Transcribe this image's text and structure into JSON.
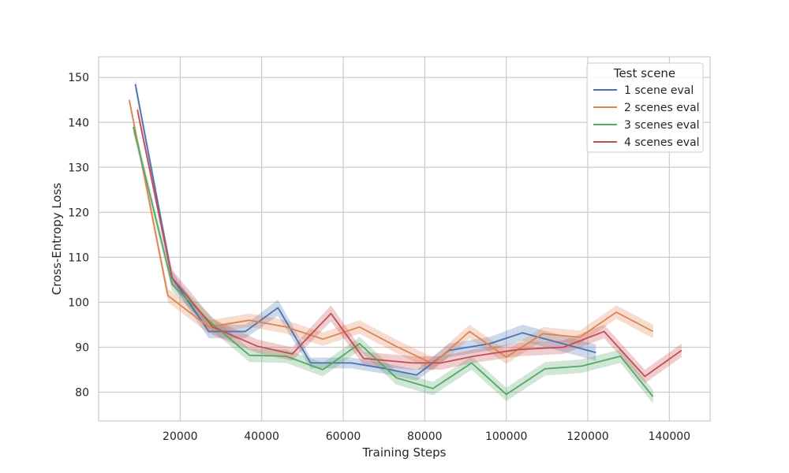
{
  "chart_data": {
    "type": "line",
    "xlabel": "Training Steps",
    "ylabel": "Cross-Entropy Loss",
    "xlim": [
      0,
      150000
    ],
    "ylim": [
      73.6,
      154.6
    ],
    "xticks": [
      20000,
      40000,
      60000,
      80000,
      100000,
      120000,
      140000
    ],
    "yticks": [
      80,
      90,
      100,
      110,
      120,
      130,
      140,
      150
    ],
    "grid": true,
    "legend": {
      "title": "Test scene",
      "position": "top-right"
    },
    "series": [
      {
        "name": "1 scene eval",
        "color": "#4C72B0",
        "x": [
          9000,
          18000,
          27000,
          36000,
          44000,
          52000,
          62000,
          70000,
          78000,
          86000,
          96000,
          104000,
          113000,
          122000
        ],
        "y": [
          148.5,
          105.5,
          93.5,
          93.5,
          98.8,
          86.5,
          86.5,
          85.3,
          83.8,
          89.3,
          90.8,
          93.2,
          91.0,
          88.8
        ],
        "ci": [
          1.2,
          1.5,
          1.5,
          1.5,
          1.8,
          1.2,
          1.2,
          1.2,
          1.2,
          1.5,
          1.5,
          1.8,
          1.8,
          1.8
        ]
      },
      {
        "name": "2 scenes eval",
        "color": "#DD8452",
        "x": [
          7500,
          17000,
          27000,
          37000,
          46000,
          55000,
          64000,
          73000,
          82000,
          91000,
          100000,
          109000,
          118000,
          127000,
          136000
        ],
        "y": [
          145.0,
          101.5,
          94.5,
          96.0,
          94.5,
          91.8,
          94.5,
          90.2,
          86.3,
          93.5,
          87.8,
          93.0,
          92.2,
          97.8,
          93.5
        ],
        "ci": [
          1.0,
          1.5,
          1.5,
          1.5,
          1.5,
          1.5,
          1.5,
          1.5,
          1.5,
          1.5,
          1.5,
          1.5,
          1.5,
          1.5,
          1.5
        ]
      },
      {
        "name": "3 scenes eval",
        "color": "#55A868",
        "x": [
          8500,
          18000,
          27500,
          37000,
          46000,
          55000,
          64000,
          73000,
          82000,
          91500,
          100000,
          109500,
          118500,
          128000,
          136000
        ],
        "y": [
          139.0,
          104.0,
          95.5,
          88.2,
          88.0,
          85.0,
          90.8,
          83.2,
          80.8,
          86.5,
          79.5,
          85.2,
          85.8,
          88.0,
          79.0
        ],
        "ci": [
          1.5,
          1.5,
          1.5,
          1.5,
          1.5,
          1.5,
          1.5,
          1.5,
          1.5,
          1.5,
          1.5,
          1.5,
          1.5,
          1.5,
          1.5
        ]
      },
      {
        "name": "4 scenes eval",
        "color": "#C44E52",
        "x": [
          9500,
          18000,
          28000,
          39000,
          47500,
          57000,
          65000,
          77000,
          84000,
          92000,
          103000,
          114000,
          124000,
          134000,
          143000
        ],
        "y": [
          142.8,
          105.5,
          94.5,
          90.2,
          88.5,
          97.5,
          87.5,
          86.5,
          86.5,
          88.0,
          89.5,
          90.0,
          93.5,
          83.5,
          89.3
        ],
        "ci": [
          1.0,
          1.8,
          1.8,
          1.5,
          1.5,
          1.8,
          1.5,
          1.5,
          1.5,
          1.5,
          1.5,
          1.5,
          1.5,
          1.5,
          1.5
        ]
      }
    ]
  }
}
